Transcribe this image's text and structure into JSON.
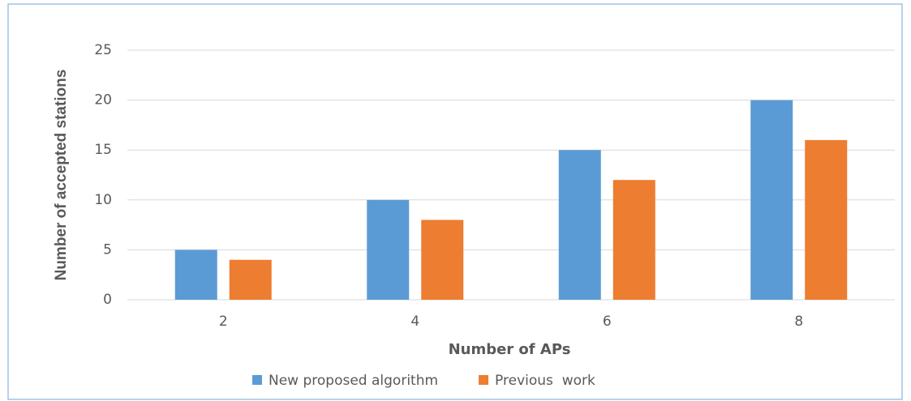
{
  "chart_data": {
    "type": "bar",
    "x_label": "Number of APs",
    "y_label": "Number of accepted stations",
    "categories": [
      "2",
      "4",
      "6",
      "8"
    ],
    "series": [
      {
        "name": "New proposed algorithm",
        "color": "#5b9bd5",
        "values": [
          5,
          10,
          15,
          20
        ]
      },
      {
        "name": "Previous  work",
        "color": "#ed7d31",
        "values": [
          4,
          8,
          12,
          16
        ]
      }
    ],
    "ylim": [
      0,
      25
    ],
    "yticks": [
      0,
      5,
      10,
      15,
      20,
      25
    ],
    "grid": true,
    "legend": "bottom"
  }
}
